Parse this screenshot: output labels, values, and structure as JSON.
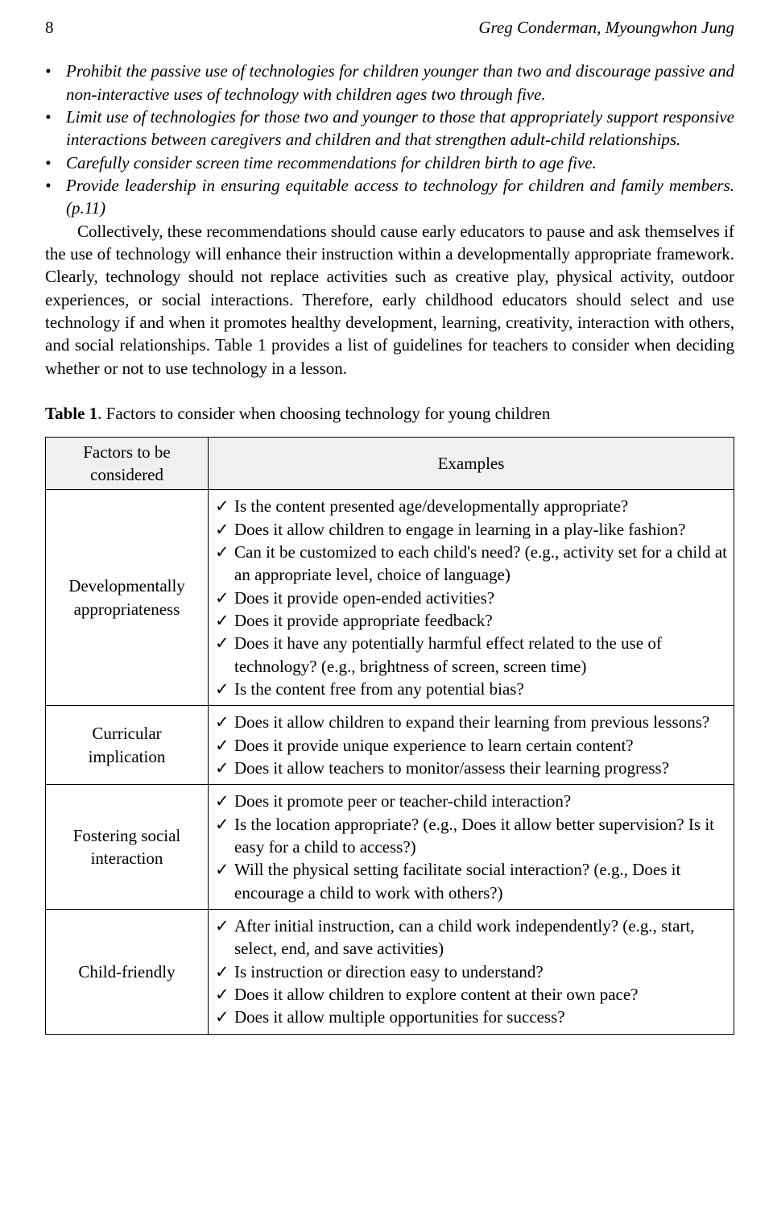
{
  "header": {
    "page_number": "8",
    "authors": "Greg Conderman, Myoungwhon Jung"
  },
  "bullets": [
    "Prohibit the passive use of technologies for children younger than two and discourage passive and non-interactive uses of technology with children ages two through five.",
    "Limit use of technologies for those two and younger to those that appropriately support responsive interactions between caregivers and children and that strengthen adult-child relationships.",
    "Carefully consider screen time recommendations for children birth to age five.",
    "Provide leadership in ensuring equitable access to technology for children and family members. (p.11)"
  ],
  "paragraph": "Collectively, these recommendations should cause early educators to pause and ask themselves if the use of technology will enhance their instruction within a developmentally appropriate framework. Clearly, technology should not replace activities such as creative play, physical activity, outdoor experiences, or social interactions. Therefore, early childhood educators should select and use technology if and when it promotes healthy development, learning, creativity, interaction with others, and social relationships. Table 1 provides a list of guidelines for teachers to consider when deciding whether or not to use technology in a lesson.",
  "table_caption_label": "Table 1",
  "table_caption_text": ". Factors to consider when choosing technology for young children",
  "table": {
    "head": {
      "col1": "Factors to be considered",
      "col2": "Examples"
    },
    "rows": [
      {
        "factor": "Developmentally appropriateness",
        "items": [
          "Is the content presented age/developmentally appropriate?",
          "Does it allow children to engage in learning in a play-like fashion?",
          "Can it be customized to each child's need? (e.g., activity set for a child at an appropriate level, choice of language)",
          "Does it provide open-ended activities?",
          "Does it provide appropriate feedback?",
          "Does it have any potentially harmful effect related to the use of technology? (e.g., brightness of screen, screen time)",
          "Is the content free from any potential bias?"
        ]
      },
      {
        "factor": "Curricular implication",
        "items": [
          "Does it allow children to expand their learning from previous lessons?",
          "Does it provide unique experience to learn certain content?",
          "Does it allow teachers to monitor/assess their learning progress?"
        ]
      },
      {
        "factor": "Fostering social interaction",
        "items": [
          "Does it promote peer or teacher-child interaction?",
          "Is the location appropriate? (e.g., Does it allow better supervision? Is it easy for a child to access?)",
          "Will the physical setting facilitate social interaction? (e.g., Does it encourage a child to work with others?)"
        ]
      },
      {
        "factor": "Child-friendly",
        "items": [
          "After initial instruction, can a child work independently? (e.g., start, select, end, and save activities)",
          "Is instruction or direction easy to understand?",
          "Does it allow children to explore content at their own pace?",
          "Does it allow multiple opportunities for success?"
        ]
      }
    ]
  }
}
